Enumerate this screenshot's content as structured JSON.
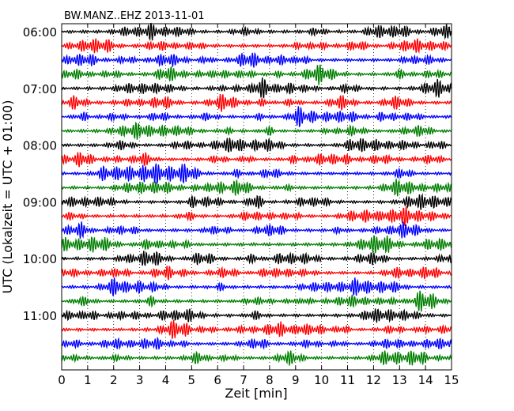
{
  "chart_data": {
    "type": "line",
    "title": "BW.MANZ..EHZ 2013-11-01",
    "xlabel": "Zeit  [min]",
    "ylabel": "UTC (Lokalzeit = UTC + 01:00)",
    "xlim": [
      0,
      15
    ],
    "x_ticks": [
      "0",
      "1",
      "2",
      "3",
      "4",
      "5",
      "6",
      "7",
      "8",
      "9",
      "10",
      "11",
      "12",
      "13",
      "14",
      "15"
    ],
    "y_ticks": [
      "06:00",
      "07:00",
      "08:00",
      "09:00",
      "10:00",
      "11:00"
    ],
    "grid": {
      "vertical_dotted": true,
      "horizontal": false
    },
    "trace_count": 24,
    "trace_interval_minutes": 15,
    "first_trace_utc": "06:00",
    "trace_colors": [
      "#000000",
      "#ff0000",
      "#0000ff",
      "#007f00"
    ]
  }
}
